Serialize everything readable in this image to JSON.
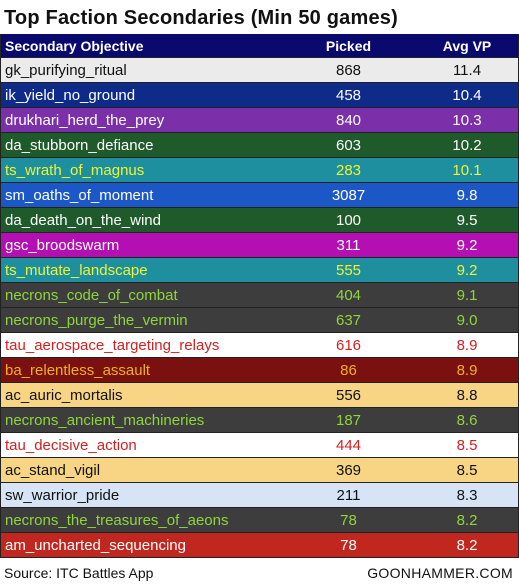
{
  "title": "Top Faction Secondaries (Min 50 games)",
  "table": {
    "headers": [
      "Secondary Objective",
      "Picked",
      "Avg VP"
    ],
    "header_style": {
      "bg": "#0a0a6e",
      "fg": "#ffffff"
    },
    "rows": [
      {
        "name": "gk_purifying_ritual",
        "picked": "868",
        "avg": "11.4",
        "bg": "#ebebeb",
        "fg": "#111111"
      },
      {
        "name": "ik_yield_no_ground",
        "picked": "458",
        "avg": "10.4",
        "bg": "#0f2b8a",
        "fg": "#ffffff"
      },
      {
        "name": "drukhari_herd_the_prey",
        "picked": "840",
        "avg": "10.3",
        "bg": "#7b2fa8",
        "fg": "#ffffff"
      },
      {
        "name": "da_stubborn_defiance",
        "picked": "603",
        "avg": "10.2",
        "bg": "#1e5a2a",
        "fg": "#ffffff"
      },
      {
        "name": "ts_wrath_of_magnus",
        "picked": "283",
        "avg": "10.1",
        "bg": "#1e8f9e",
        "fg": "#f2f230"
      },
      {
        "name": "sm_oaths_of_moment",
        "picked": "3087",
        "avg": "9.8",
        "bg": "#1c57c8",
        "fg": "#ffffff"
      },
      {
        "name": "da_death_on_the_wind",
        "picked": "100",
        "avg": "9.5",
        "bg": "#1e5a2a",
        "fg": "#ffffff"
      },
      {
        "name": "gsc_broodswarm",
        "picked": "311",
        "avg": "9.2",
        "bg": "#b30fb3",
        "fg": "#ffffff"
      },
      {
        "name": "ts_mutate_landscape",
        "picked": "555",
        "avg": "9.2",
        "bg": "#1e8f9e",
        "fg": "#f2f230"
      },
      {
        "name": "necrons_code_of_combat",
        "picked": "404",
        "avg": "9.1",
        "bg": "#3d3d3d",
        "fg": "#8ed63a"
      },
      {
        "name": "necrons_purge_the_vermin",
        "picked": "637",
        "avg": "9.0",
        "bg": "#3d3d3d",
        "fg": "#8ed63a"
      },
      {
        "name": "tau_aerospace_targeting_relays",
        "picked": "616",
        "avg": "8.9",
        "bg": "#ffffff",
        "fg": "#d42020"
      },
      {
        "name": "ba_relentless_assault",
        "picked": "86",
        "avg": "8.9",
        "bg": "#7a1010",
        "fg": "#f0b020"
      },
      {
        "name": "ac_auric_mortalis",
        "picked": "556",
        "avg": "8.8",
        "bg": "#f8d585",
        "fg": "#111111"
      },
      {
        "name": "necrons_ancient_machineries",
        "picked": "187",
        "avg": "8.6",
        "bg": "#3d3d3d",
        "fg": "#8ed63a"
      },
      {
        "name": "tau_decisive_action",
        "picked": "444",
        "avg": "8.5",
        "bg": "#ffffff",
        "fg": "#d42020"
      },
      {
        "name": "ac_stand_vigil",
        "picked": "369",
        "avg": "8.5",
        "bg": "#f8d585",
        "fg": "#111111"
      },
      {
        "name": "sw_warrior_pride",
        "picked": "211",
        "avg": "8.3",
        "bg": "#d6e4f5",
        "fg": "#111111"
      },
      {
        "name": "necrons_the_treasures_of_aeons",
        "picked": "78",
        "avg": "8.2",
        "bg": "#3d3d3d",
        "fg": "#8ed63a"
      },
      {
        "name": "am_uncharted_sequencing",
        "picked": "78",
        "avg": "8.2",
        "bg": "#c0271f",
        "fg": "#ffffff"
      }
    ]
  },
  "footer": {
    "source": "Source: ITC Battles App",
    "brand": "GOONHAMMER.COM"
  }
}
